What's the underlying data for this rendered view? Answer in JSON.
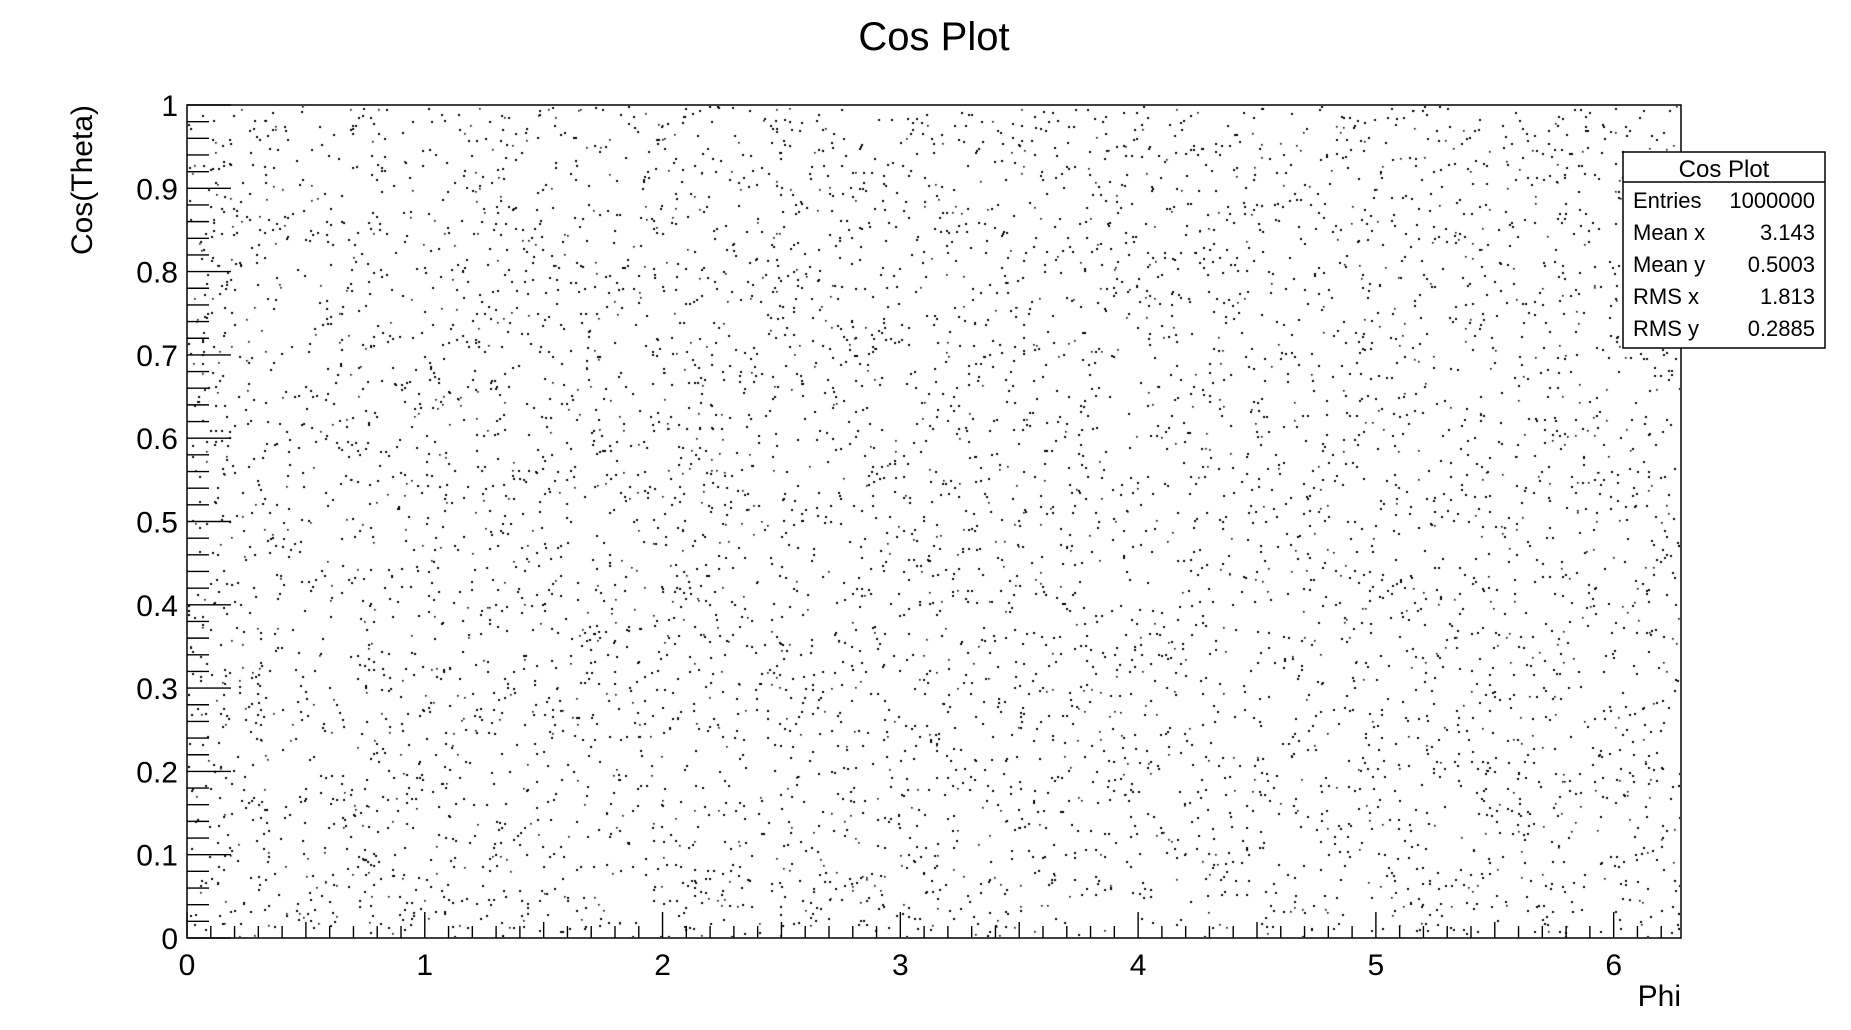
{
  "chart_data": {
    "type": "scatter",
    "title": "Cos Plot",
    "xlabel": "Phi",
    "ylabel": "Cos(Theta)",
    "xlim": [
      0,
      6.2832
    ],
    "ylim": [
      0,
      1
    ],
    "x_ticks": [
      "0",
      "1",
      "2",
      "3",
      "4",
      "5",
      "6"
    ],
    "y_ticks": [
      "0",
      "0.1",
      "0.2",
      "0.3",
      "0.4",
      "0.5",
      "0.6",
      "0.7",
      "0.8",
      "0.9",
      "1"
    ],
    "x_tick_values": [
      0,
      1,
      2,
      3,
      4,
      5,
      6
    ],
    "y_tick_values": [
      0,
      0.1,
      0.2,
      0.3,
      0.4,
      0.5,
      0.6,
      0.7,
      0.8,
      0.9,
      1
    ],
    "distribution": "uniform",
    "grid": false,
    "legend": "none",
    "marker_color": "#000000",
    "stats_box": {
      "title": "Cos Plot",
      "position": "top-right",
      "rows": [
        {
          "label": "Entries",
          "value": "1000000"
        },
        {
          "label": "Mean x",
          "value": "3.143"
        },
        {
          "label": "Mean y",
          "value": "0.5003"
        },
        {
          "label": "RMS x",
          "value": "1.813"
        },
        {
          "label": "RMS y",
          "value": "0.2885"
        }
      ]
    }
  }
}
